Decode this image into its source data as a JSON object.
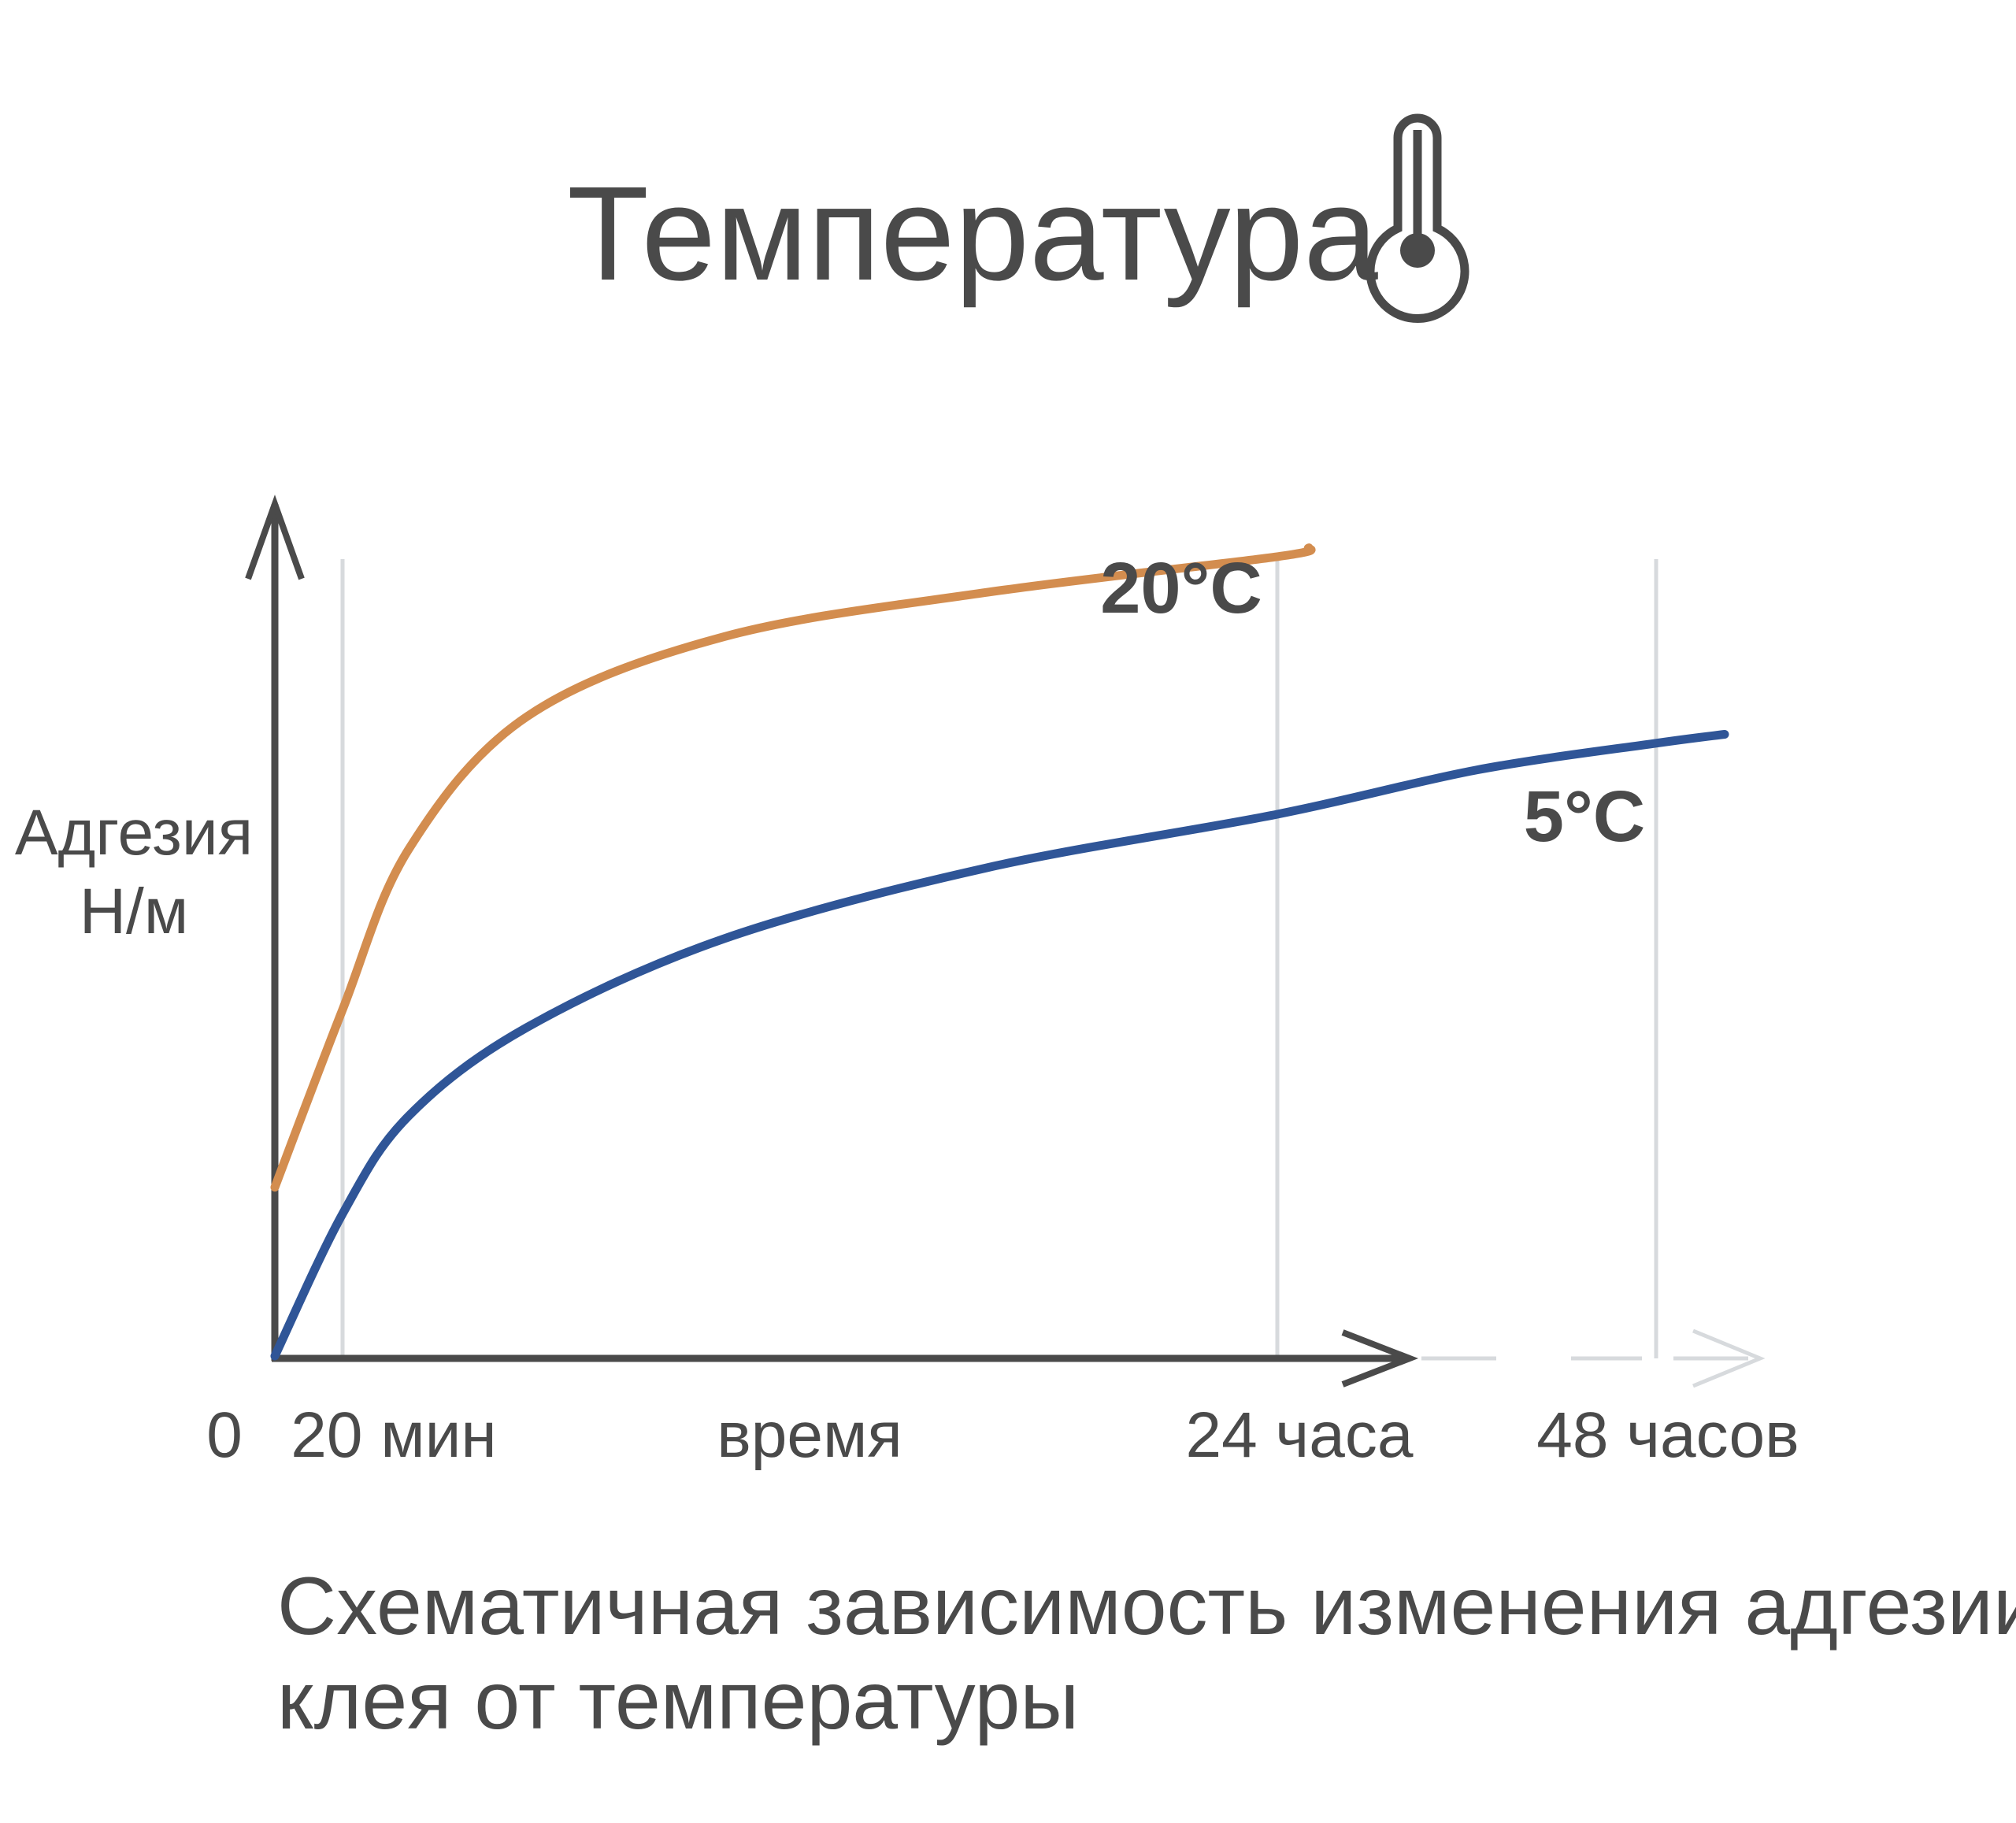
{
  "header": {
    "title": "Температура",
    "icon": "thermometer-icon"
  },
  "chart_data": {
    "type": "line",
    "title": "Температура",
    "ylabel_lines": [
      "Адгезия",
      "Н/м"
    ],
    "xlabel": "время",
    "x_ticks": [
      {
        "key": "zero",
        "label": "0"
      },
      {
        "key": "20min",
        "label": "20 мин"
      },
      {
        "key": "24h",
        "label": "24 часа"
      },
      {
        "key": "48h",
        "label": "48 часов"
      }
    ],
    "series": [
      {
        "name": "20°C",
        "color": "#D38D4F",
        "points": [
          [
            0,
            0.19
          ],
          [
            20,
            0.39
          ],
          [
            120,
            0.57
          ],
          [
            300,
            0.72
          ],
          [
            600,
            0.81
          ],
          [
            1000,
            0.86
          ],
          [
            1440,
            0.9
          ],
          [
            1560,
            0.91
          ]
        ]
      },
      {
        "name": "5°C",
        "color": "#2F5597",
        "points": [
          [
            0,
            0.0
          ],
          [
            20,
            0.16
          ],
          [
            120,
            0.27
          ],
          [
            300,
            0.37
          ],
          [
            600,
            0.47
          ],
          [
            1000,
            0.55
          ],
          [
            1440,
            0.61
          ],
          [
            2200,
            0.66
          ],
          [
            2880,
            0.69
          ],
          [
            3050,
            0.7
          ]
        ]
      }
    ],
    "grid": "vertical lines at 20 мин, 24 часа, 48 часов",
    "legend": "inline labels at line ends",
    "colors": {
      "axis": "#4a4a4a",
      "grid": "#d7dadd",
      "axis_extension": "#d7dadd"
    }
  },
  "caption": {
    "line1": "Схематичная зависимость изменения адгезии",
    "line2": "клея от температуры"
  }
}
